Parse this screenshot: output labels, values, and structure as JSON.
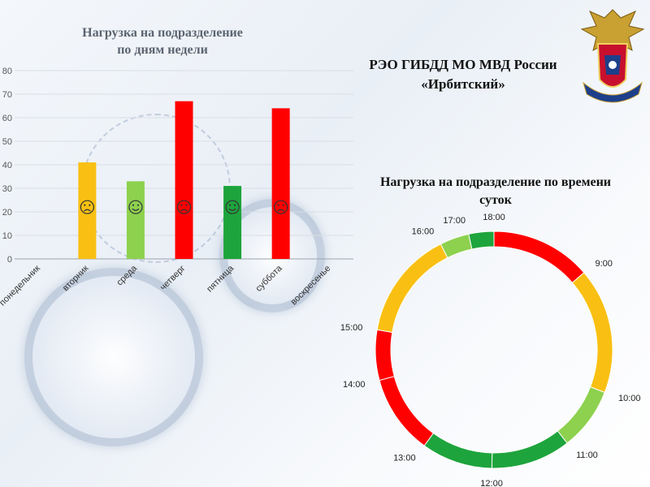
{
  "header": {
    "org_name_line1": "РЭО ГИБДД МО МВД России",
    "org_name_line2": "«Ирбитский»"
  },
  "emblem": {
    "icon": "mvd-emblem-icon"
  },
  "chart_data": [
    {
      "type": "bar",
      "title_line1": "Нагрузка на подразделение",
      "title_line2": "по дням недели",
      "categories": [
        "понедельник",
        "вторник",
        "среда",
        "четверг",
        "пятница",
        "суббота",
        "воскресенье"
      ],
      "values": [
        null,
        41,
        33,
        67,
        31,
        64,
        null
      ],
      "colors": [
        null,
        "#f9c013",
        "#8dd14f",
        "#ff0000",
        "#1ea43c",
        "#ff0000",
        null
      ],
      "moods": [
        null,
        "sad",
        "happy",
        "sad",
        "happy",
        "sad",
        null
      ],
      "ylim": [
        0,
        80
      ],
      "yticks": [
        0,
        10,
        20,
        30,
        40,
        50,
        60,
        70,
        80
      ],
      "grid": true
    },
    {
      "type": "pie",
      "variant": "donut",
      "title_line1": "Нагрузка на подразделение по времени",
      "title_line2": "суток",
      "labels": [
        "9:00",
        "10:00",
        "11:00",
        "12:00",
        "13:00",
        "14:00",
        "15:00",
        "16:00",
        "17:00",
        "18:00"
      ],
      "values": [
        1.2,
        1.5,
        0.75,
        0.95,
        0.85,
        0.95,
        0.6,
        1.3,
        0.35,
        0.3
      ],
      "colors": [
        "#ff0000",
        "#f9c013",
        "#8dd14f",
        "#1ea43c",
        "#1ea43c",
        "#ff0000",
        "#ff0000",
        "#f9c013",
        "#8dd14f",
        "#1ea43c"
      ]
    }
  ]
}
